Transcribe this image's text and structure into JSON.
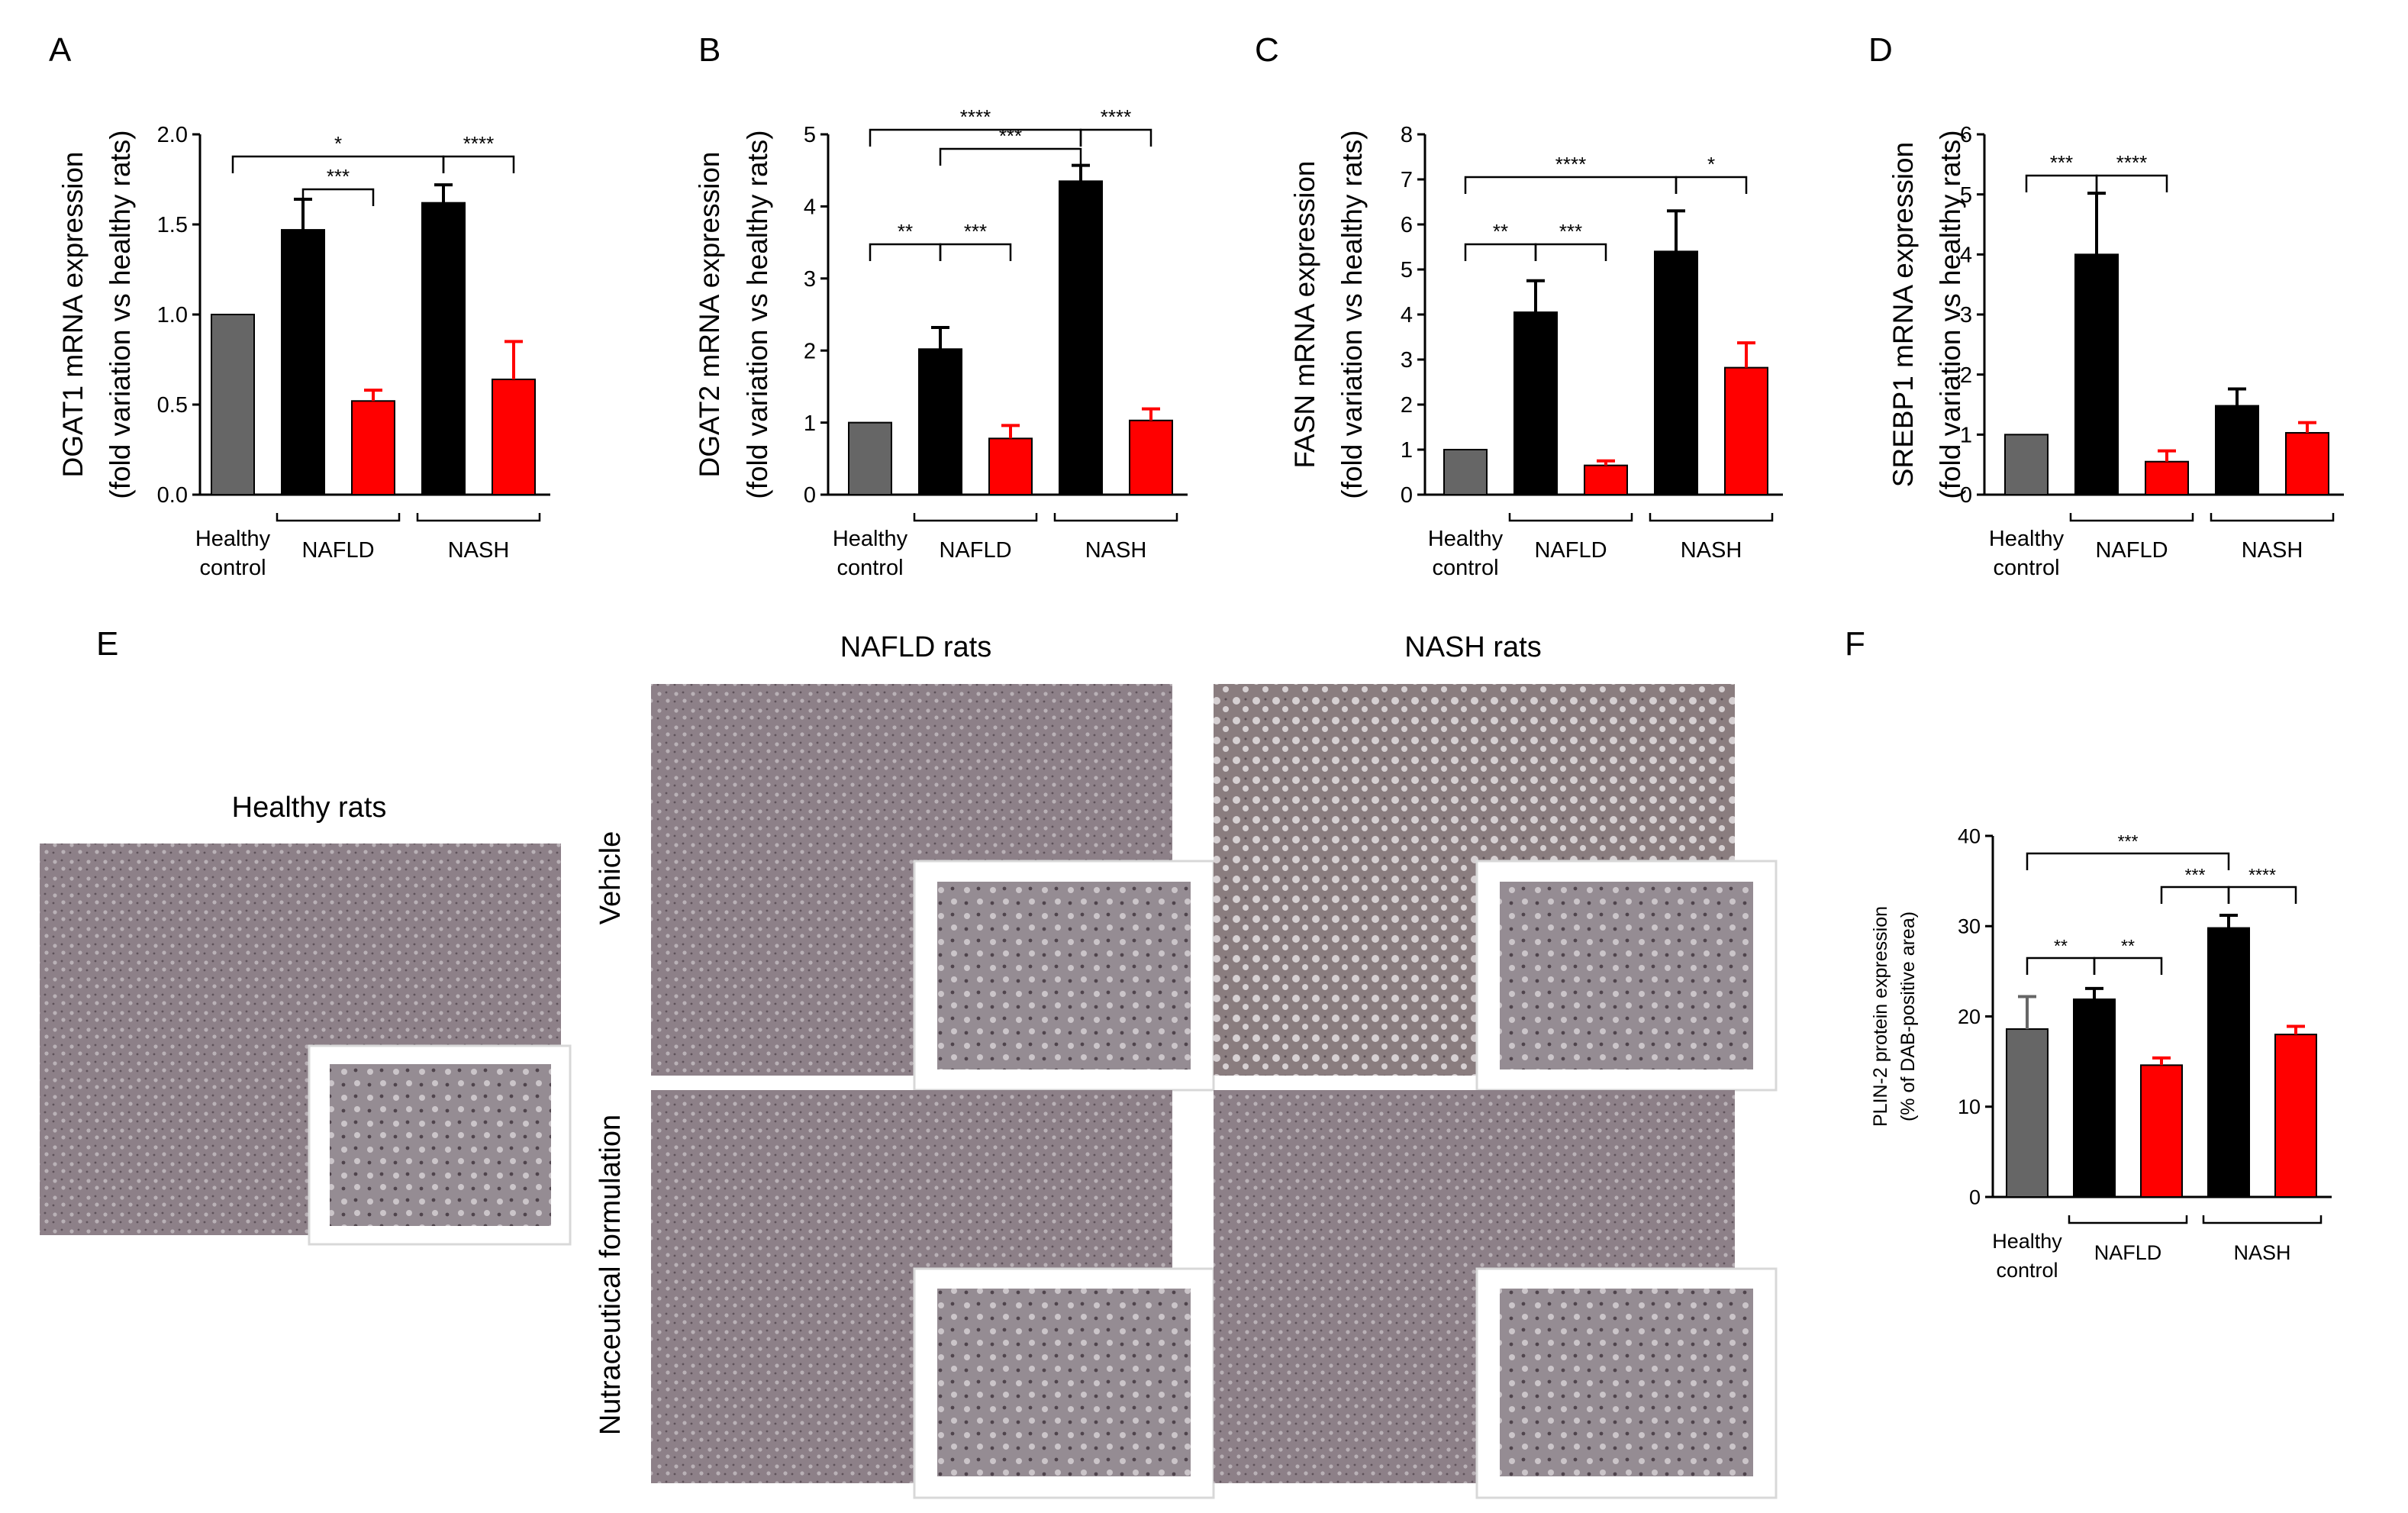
{
  "panels": {
    "A": {
      "letter": "A"
    },
    "B": {
      "letter": "B"
    },
    "C": {
      "letter": "C"
    },
    "D": {
      "letter": "D"
    },
    "E": {
      "letter": "E"
    },
    "F": {
      "letter": "F"
    }
  },
  "groups": {
    "healthy_line1": "Healthy",
    "healthy_line2": "control",
    "nafld": "NAFLD",
    "nash": "NASH"
  },
  "colors": {
    "healthy": "#666666",
    "vehicle": "#000000",
    "nutraceutical": "#ff0000"
  },
  "chart_data": [
    {
      "id": "A",
      "type": "bar",
      "ylabel_line1": "DGAT1 mRNA expression",
      "ylabel_line2": "(fold variation vs healthy rats)",
      "ylim": [
        0,
        2.0
      ],
      "yticks": [
        "0.0",
        "0.5",
        "1.0",
        "1.5",
        "2.0"
      ],
      "values": [
        1.0,
        1.47,
        0.52,
        1.62,
        0.64
      ],
      "errors": [
        0,
        0.17,
        0.06,
        0.1,
        0.21
      ],
      "significance": [
        {
          "label": "*",
          "from": 0,
          "to": 3
        },
        {
          "label": "****",
          "from": 3,
          "to": 4
        },
        {
          "label": "***",
          "from": 1,
          "to": 2
        }
      ]
    },
    {
      "id": "B",
      "type": "bar",
      "ylabel_line1": "DGAT2 mRNA  expression",
      "ylabel_line2": "(fold variation vs healthy rats)",
      "ylim": [
        0,
        5
      ],
      "yticks": [
        "0",
        "1",
        "2",
        "3",
        "4",
        "5"
      ],
      "values": [
        1.0,
        2.02,
        0.78,
        4.35,
        1.03
      ],
      "errors": [
        0,
        0.3,
        0.18,
        0.22,
        0.16
      ],
      "significance": [
        {
          "label": "****",
          "from": 0,
          "to": 3
        },
        {
          "label": "****",
          "from": 3,
          "to": 4
        },
        {
          "label": "***",
          "from": 1,
          "to": 3
        },
        {
          "label": "**",
          "from": 0,
          "to": 1
        },
        {
          "label": "***",
          "from": 1,
          "to": 2
        }
      ]
    },
    {
      "id": "C",
      "type": "bar",
      "ylabel_line1": "FASN mRNA expression",
      "ylabel_line2": "(fold variation vs healthy rats)",
      "ylim": [
        0,
        8
      ],
      "yticks": [
        "0",
        "1",
        "2",
        "3",
        "4",
        "5",
        "6",
        "7",
        "8"
      ],
      "values": [
        1.0,
        4.05,
        0.65,
        5.4,
        2.82
      ],
      "errors": [
        0,
        0.7,
        0.1,
        0.9,
        0.55
      ],
      "significance": [
        {
          "label": "****",
          "from": 0,
          "to": 3
        },
        {
          "label": "*",
          "from": 3,
          "to": 4
        },
        {
          "label": "**",
          "from": 0,
          "to": 1
        },
        {
          "label": "***",
          "from": 1,
          "to": 2
        }
      ]
    },
    {
      "id": "D",
      "type": "bar",
      "ylabel_line1": "SREBP1 mRNA expression",
      "ylabel_line2": "(fold variation vs healthy rats)",
      "ylim": [
        0,
        6
      ],
      "yticks": [
        "0",
        "1",
        "2",
        "3",
        "4",
        "5",
        "6"
      ],
      "values": [
        1.0,
        4.0,
        0.55,
        1.48,
        1.03
      ],
      "errors": [
        0,
        1.02,
        0.18,
        0.28,
        0.17
      ],
      "significance": [
        {
          "label": "***",
          "from": 0,
          "to": 1
        },
        {
          "label": "****",
          "from": 1,
          "to": 2
        }
      ]
    },
    {
      "id": "F",
      "type": "bar",
      "ylabel_line1": "PLIN-2 protein expression",
      "ylabel_line2": "(% of DAB-positive area)",
      "ylim": [
        0,
        40
      ],
      "yticks": [
        "0",
        "10",
        "20",
        "30",
        "40"
      ],
      "values": [
        18.6,
        21.9,
        14.6,
        29.8,
        18.0
      ],
      "errors": [
        3.6,
        1.2,
        0.8,
        1.4,
        0.9
      ],
      "significance": [
        {
          "label": "***",
          "from": 0,
          "to": 3
        },
        {
          "label": "***",
          "from": 3,
          "to": 2
        },
        {
          "label": "****",
          "from": 3,
          "to": 4
        },
        {
          "label": "**",
          "from": 0,
          "to": 1
        },
        {
          "label": "**",
          "from": 1,
          "to": 2
        }
      ]
    }
  ],
  "histology": {
    "healthy_title": "Healthy rats",
    "nafld_title": "NAFLD rats",
    "nash_title": "NASH rats",
    "row_vehicle": "Vehicle",
    "row_nutraceutical": "Nutraceutical formulation"
  }
}
